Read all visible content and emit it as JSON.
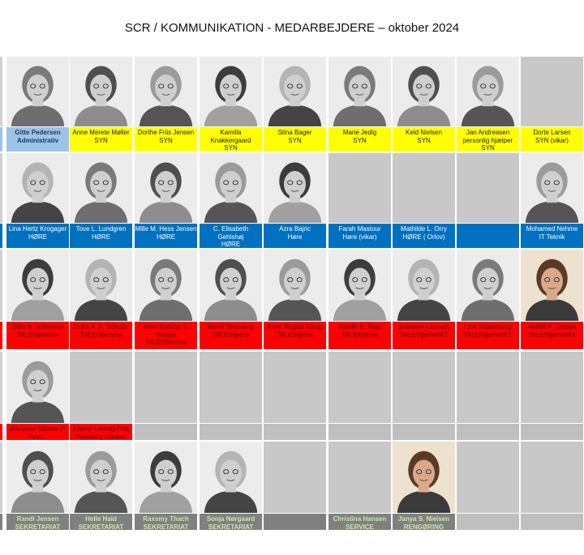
{
  "title": "SCR / KOMMUNIKATION - MEDARBEJDERE – oktober 2024",
  "colors": {
    "SYN": "#ffff00",
    "HORE": "#0070c0",
    "TALE": "#ff0000",
    "SEKRETARIAT": "#808080",
    "ADMIN": "#9dc3e6",
    "EMPTY": "#bfbfbf"
  },
  "rows": [
    {
      "cells": [
        {
          "name": "Gitte Pedersen",
          "role": "Administrativ",
          "color": "ADMIN",
          "photo": "person"
        },
        {
          "name": "Anne Merete Møller",
          "role": "SYN",
          "color": "SYN",
          "photo": "person"
        },
        {
          "name": "Dorthe Friis Jensen",
          "role": "SYN",
          "color": "SYN",
          "photo": "person"
        },
        {
          "name": "Kamilla Knakkergaard",
          "role": "SYN",
          "color": "SYN",
          "photo": "person"
        },
        {
          "name": "Stina Bager",
          "role": "SYN",
          "color": "SYN",
          "photo": "person"
        },
        {
          "name": "Marie Jedig",
          "role": "SYN",
          "color": "SYN",
          "photo": "person"
        },
        {
          "name": "Keld Nielsen",
          "role": "SYN",
          "color": "SYN",
          "photo": "person"
        },
        {
          "name": "Jan Andreasen",
          "role": "personlig hjælper SYN",
          "color": "SYN",
          "photo": "person"
        },
        {
          "name": "Dorte Larsen",
          "role": "SYN (vikar)",
          "color": "SYN",
          "photo": "empty"
        }
      ]
    },
    {
      "cells": [
        {
          "name": "Lina Hertz Krogager",
          "role": "HØRE",
          "color": "HORE",
          "photo": "person"
        },
        {
          "name": "Tove L. Lundgren",
          "role": "HØRE",
          "color": "HORE",
          "photo": "person"
        },
        {
          "name": "Mille M. Hess Jensen",
          "role": "HØRE",
          "color": "HORE",
          "photo": "person"
        },
        {
          "name": "C. Elisabeth Gehlshøj",
          "role": "HØRE",
          "color": "HORE",
          "photo": "person"
        },
        {
          "name": "Azra Bajric",
          "role": "Høre",
          "color": "HORE",
          "photo": "person"
        },
        {
          "name": "Farah Mastour",
          "role": "Høre (vikar)",
          "color": "HORE",
          "photo": "empty"
        },
        {
          "name": "Mathilde L. Orry",
          "role": "HØRE ( Orlov)",
          "color": "HORE",
          "photo": "empty"
        },
        {
          "name": "",
          "role": "",
          "color": "HORE",
          "photo": "empty"
        },
        {
          "name": "Mohamed Nehme",
          "role": "IT Teknik",
          "color": "HORE",
          "photo": "person"
        }
      ]
    },
    {
      "cells": [
        {
          "name": "Ditte S. Johansen",
          "role": "TALE/Stemme",
          "color": "TALE",
          "photo": "person"
        },
        {
          "name": "Erika A. K. Schultz",
          "role": "TALE/Stemme",
          "color": "TALE",
          "photo": "person"
        },
        {
          "name": "Anna Katrine S. Vraage",
          "role": "TALE/Stemme",
          "color": "TALE",
          "photo": "person"
        },
        {
          "name": "Maria Stenvang",
          "role": "TALE/Hjerne",
          "color": "TALE",
          "photo": "person"
        },
        {
          "name": "Anne Birgitte Kamp",
          "role": "TALE/Hjerne",
          "color": "TALE",
          "photo": "person"
        },
        {
          "name": "Josefin E. Næs",
          "role": "TALE/Hjerne",
          "color": "TALE",
          "photo": "person"
        },
        {
          "name": "Susanne Laursen",
          "role": "TALE/Hjerne/IKT",
          "color": "TALE",
          "photo": "person"
        },
        {
          "name": "Line Stoltenberg",
          "role": "TALE/Hjerne/IKT",
          "color": "TALE",
          "photo": "person"
        },
        {
          "name": "Anette F. Jensen",
          "role": "TALE/Hjerne/IKT",
          "color": "TALE",
          "photo": "color"
        }
      ]
    },
    {
      "cells": [
        {
          "name": "Marianne Wilmer-P. Pedi...",
          "role": "",
          "color": "TALE",
          "photo": "person"
        },
        {
          "name": "Hanne Lemvig Pick",
          "role": "Personlig hjælper",
          "color": "TALE",
          "photo": "empty"
        },
        {
          "name": "",
          "role": "",
          "color": "EMPTY",
          "photo": "empty"
        },
        {
          "name": "",
          "role": "",
          "color": "EMPTY",
          "photo": "empty"
        },
        {
          "name": "",
          "role": "",
          "color": "EMPTY",
          "photo": "empty"
        },
        {
          "name": "",
          "role": "",
          "color": "EMPTY",
          "photo": "empty"
        },
        {
          "name": "",
          "role": "",
          "color": "EMPTY",
          "photo": "empty"
        },
        {
          "name": "",
          "role": "",
          "color": "EMPTY",
          "photo": "empty"
        },
        {
          "name": "",
          "role": "",
          "color": "EMPTY",
          "photo": "empty"
        }
      ]
    },
    {
      "cells": [
        {
          "name": "Randi Jensen",
          "role": "SEKRETARIAT",
          "color": "SEKRETARIAT",
          "photo": "person"
        },
        {
          "name": "Helle Hald",
          "role": "SEKRETARIAT",
          "color": "SEKRETARIAT",
          "photo": "person"
        },
        {
          "name": "Raxsmy Thach",
          "role": "SEKRETARIAT",
          "color": "SEKRETARIAT",
          "photo": "person"
        },
        {
          "name": "Sonja Nørgaard",
          "role": "SEKRETARIAT",
          "color": "SEKRETARIAT",
          "photo": "person"
        },
        {
          "name": "",
          "role": "",
          "color": "SEKRETARIAT",
          "photo": "empty"
        },
        {
          "name": "Christina Hansen",
          "role": "SERVICE",
          "color": "SEKRETARIAT",
          "photo": "empty"
        },
        {
          "name": "Janya S. Nielsen",
          "role": "RENGØRING",
          "color": "SEKRETARIAT",
          "photo": "color"
        },
        {
          "name": "",
          "role": "",
          "color": "EMPTY",
          "photo": "empty"
        },
        {
          "name": "",
          "role": "",
          "color": "EMPTY",
          "photo": "empty"
        }
      ]
    }
  ]
}
